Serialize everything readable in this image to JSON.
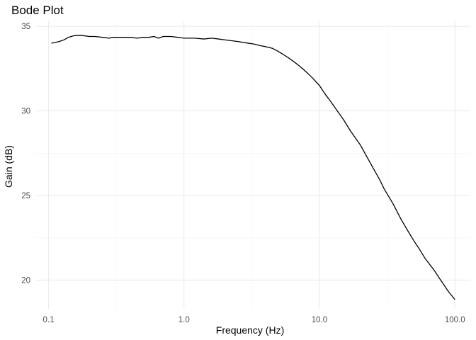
{
  "chart_data": {
    "type": "line",
    "title": "Bode Plot",
    "xlabel": "Frequency (Hz)",
    "ylabel": "Gain (dB)",
    "x_scale": "log10",
    "xlim": [
      0.08,
      130
    ],
    "ylim": [
      18.3,
      35.3
    ],
    "x_ticks": [
      0.1,
      1.0,
      10.0,
      100.0
    ],
    "x_tick_labels": [
      "0.1",
      "1.0",
      "10.0",
      "100.0"
    ],
    "y_ticks": [
      20,
      25,
      30,
      35
    ],
    "y_tick_labels": [
      "20",
      "25",
      "30",
      "35"
    ],
    "grid": true,
    "legend": "none",
    "series": [
      {
        "color": "#000000",
        "x": [
          0.105,
          0.12,
          0.13,
          0.14,
          0.155,
          0.17,
          0.18,
          0.2,
          0.22,
          0.25,
          0.28,
          0.3,
          0.35,
          0.4,
          0.45,
          0.5,
          0.55,
          0.6,
          0.65,
          0.7,
          0.8,
          0.9,
          1.0,
          1.2,
          1.4,
          1.6,
          1.8,
          2.0,
          2.5,
          3.0,
          3.3,
          3.7,
          4.0,
          4.5,
          5.0,
          5.5,
          6.0,
          6.5,
          7.0,
          7.5,
          8.0,
          8.5,
          9.0,
          10.0,
          11.0,
          12.0,
          13.0,
          15.0,
          17.0,
          20.0,
          22.0,
          25.0,
          28.0,
          30.0,
          35.0,
          40.0,
          45.0,
          50.0,
          55.0,
          60.0,
          70.0,
          80.0,
          90.0,
          100.0
        ],
        "y": [
          34.0,
          34.1,
          34.2,
          34.35,
          34.45,
          34.47,
          34.45,
          34.4,
          34.4,
          34.35,
          34.3,
          34.35,
          34.35,
          34.35,
          34.3,
          34.35,
          34.35,
          34.4,
          34.3,
          34.4,
          34.4,
          34.35,
          34.3,
          34.3,
          34.25,
          34.3,
          34.25,
          34.2,
          34.1,
          34.0,
          33.95,
          33.85,
          33.8,
          33.7,
          33.5,
          33.3,
          33.1,
          32.9,
          32.7,
          32.5,
          32.3,
          32.1,
          31.9,
          31.5,
          31.0,
          30.6,
          30.2,
          29.5,
          28.8,
          28.0,
          27.4,
          26.6,
          25.9,
          25.4,
          24.5,
          23.6,
          22.9,
          22.3,
          21.8,
          21.3,
          20.6,
          19.9,
          19.3,
          18.85
        ]
      }
    ]
  }
}
